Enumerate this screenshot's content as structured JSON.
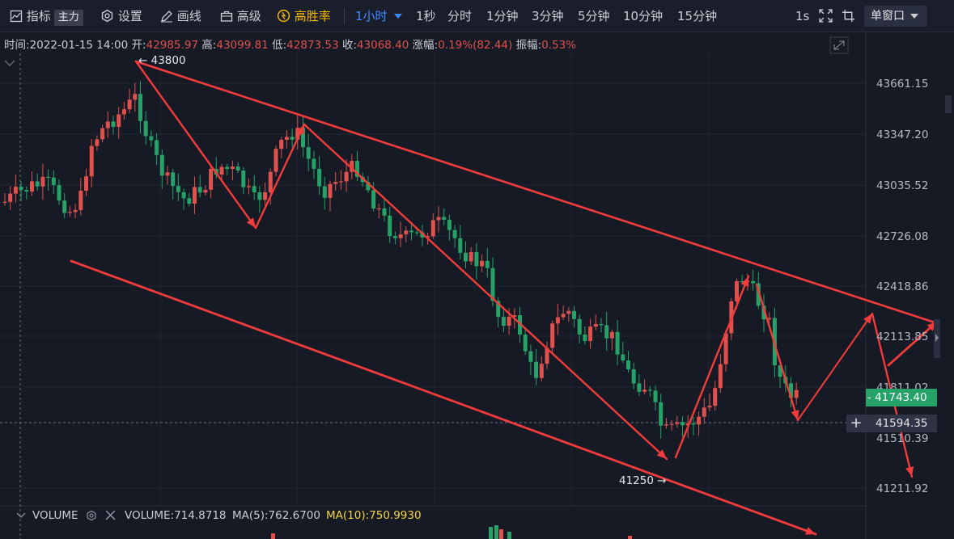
{
  "toolbar": {
    "indicators": "指标",
    "main_badge": "主力",
    "settings": "设置",
    "draw": "画线",
    "advanced": "高级",
    "win_rate": "高胜率",
    "active_interval": "1小时",
    "intervals": [
      "1秒",
      "分时",
      "1分钟",
      "3分钟",
      "5分钟",
      "10分钟",
      "15分钟"
    ],
    "refresh": "1s",
    "window_mode": "单窗口"
  },
  "ohlc": {
    "time_label": "时间:",
    "time": "2022-01-15 14:00",
    "open_label": "开:",
    "open": "42985.97",
    "high_label": "高:",
    "high": "43099.81",
    "low_label": "低:",
    "low": "42873.53",
    "close_label": "收:",
    "close": "43068.40",
    "change_label": "涨幅:",
    "change": "0.19%(82.44)",
    "amplitude_label": "振幅:",
    "amplitude": "0.53%"
  },
  "axis": {
    "labels": [
      "43661.15",
      "43347.20",
      "43035.52",
      "42726.08",
      "42418.86",
      "42113.85",
      "41811.02",
      "41510.39",
      "41211.92"
    ],
    "last_price": "41743.40",
    "crosshair_price": "41594.35"
  },
  "annotations": {
    "high_marker": "← 43800",
    "low_marker": "41250 →"
  },
  "volume": {
    "title": "VOLUME",
    "value_label": "VOLUME:714.8718",
    "ma5_label": "MA(5):762.6700",
    "ma10_label": "MA(10):750.9930"
  },
  "colors": {
    "up": "#e0504d",
    "down": "#26a269",
    "trend": "#f23b3b",
    "ma10": "#f5d44a"
  }
}
